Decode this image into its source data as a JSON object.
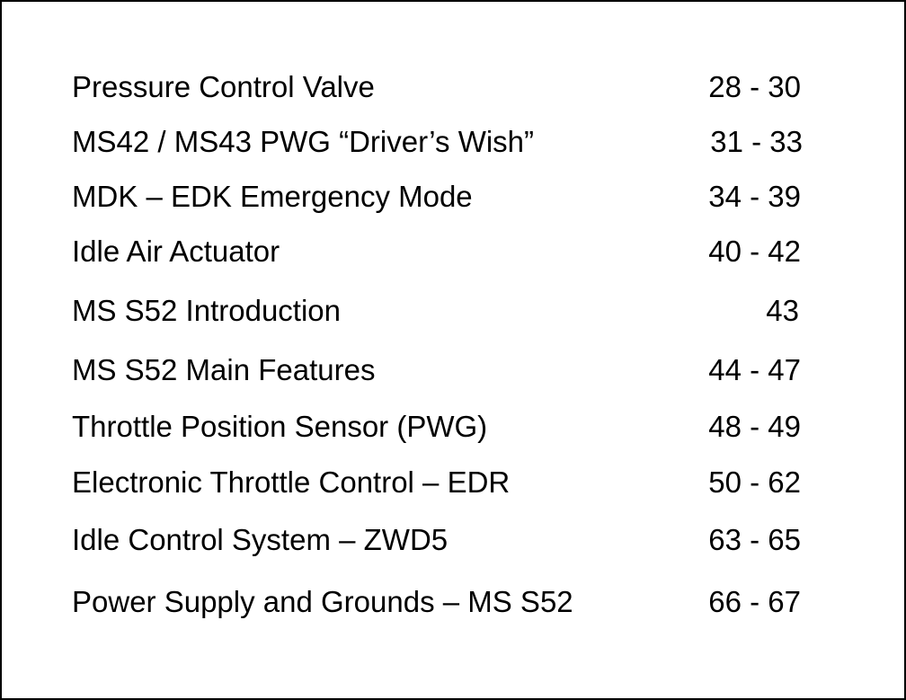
{
  "toc": {
    "entries": [
      {
        "title": "Pressure Control Valve",
        "pages": "28 - 30"
      },
      {
        "title": "MS42 / MS43 PWG “Driver’s Wish”",
        "pages": "31 - 33"
      },
      {
        "title": "MDK – EDK Emergency Mode",
        "pages": "34 - 39"
      },
      {
        "title": "Idle Air Actuator",
        "pages": "40 - 42"
      },
      {
        "title": "MS S52 Introduction",
        "pages": "43"
      },
      {
        "title": "MS S52 Main Features",
        "pages": "44 - 47"
      },
      {
        "title": "Throttle Position Sensor (PWG)",
        "pages": "48 - 49"
      },
      {
        "title": "Electronic Throttle Control – EDR",
        "pages": "50 - 62"
      },
      {
        "title": "Idle Control System – ZWD5",
        "pages": "63 - 65"
      },
      {
        "title": "Power Supply and Grounds – MS S52",
        "pages": "66 - 67"
      }
    ]
  }
}
